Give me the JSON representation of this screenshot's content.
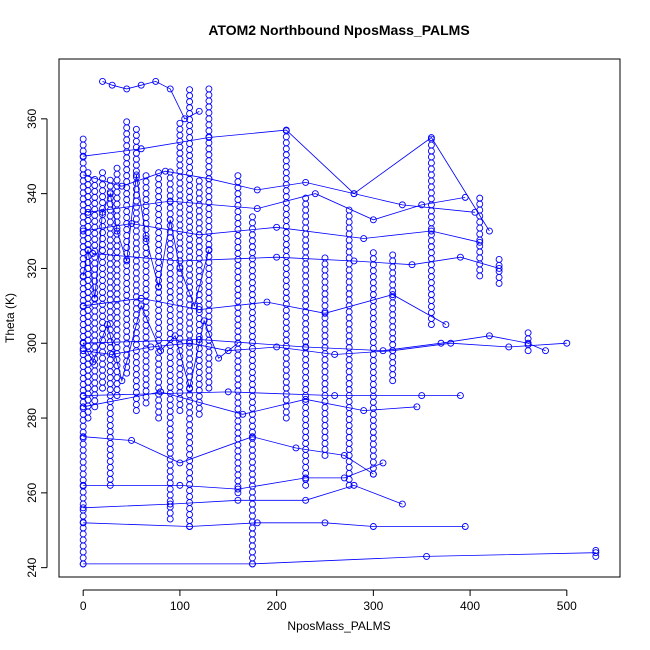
{
  "chart_data": {
    "type": "scatter",
    "title": "ATOM2 Northbound NposMass_PALMS",
    "xlabel": "NposMass_PALMS",
    "ylabel": "Theta (K)",
    "xlim": [
      -25,
      555
    ],
    "ylim": [
      237.5,
      376
    ],
    "x_ticks": [
      0,
      100,
      200,
      300,
      400,
      500
    ],
    "y_ticks": [
      240,
      260,
      280,
      300,
      320,
      340,
      360
    ],
    "grid": false,
    "legend": "none",
    "colors": {
      "points": "#0000ff",
      "lines": "#0000ff",
      "axes": "#000000"
    },
    "connected": true,
    "description_series": [
      {
        "x": [
          0,
          5,
          12,
          20,
          28,
          35,
          45,
          55,
          65,
          78,
          90,
          100,
          115,
          130
        ],
        "y": [
          318,
          325,
          312,
          335,
          340,
          330,
          322,
          345,
          328,
          315,
          333,
          320,
          310,
          325
        ]
      },
      {
        "x": [
          0,
          10,
          25,
          40,
          60,
          80,
          95,
          110,
          125,
          140,
          160
        ],
        "y": [
          300,
          295,
          305,
          290,
          310,
          298,
          302,
          288,
          306,
          296,
          300
        ]
      },
      {
        "x": [
          20,
          30,
          45,
          60,
          75,
          90,
          105,
          120
        ],
        "y": [
          370,
          369,
          368,
          369,
          370,
          368,
          360,
          362
        ]
      },
      {
        "x": [
          0,
          60,
          130,
          210,
          280,
          360,
          420
        ],
        "y": [
          350,
          352,
          355,
          357,
          340,
          355,
          330
        ]
      },
      {
        "x": [
          0,
          80,
          165,
          230,
          290,
          345
        ],
        "y": [
          283,
          287,
          281,
          285,
          282,
          283
        ]
      },
      {
        "x": [
          5,
          90,
          180,
          240,
          300,
          350,
          395
        ],
        "y": [
          335,
          338,
          336,
          340,
          333,
          337,
          339
        ]
      },
      {
        "x": [
          10,
          100,
          200,
          280,
          340,
          390,
          430
        ],
        "y": [
          324,
          322,
          323,
          322,
          321,
          323,
          320
        ]
      },
      {
        "x": [
          0,
          120,
          230,
          310,
          370,
          420,
          460,
          478
        ],
        "y": [
          300,
          301,
          299,
          298,
          300,
          302,
          300,
          298
        ]
      },
      {
        "x": [
          0,
          150,
          260,
          350,
          390
        ],
        "y": [
          286,
          287,
          286,
          286,
          286
        ]
      },
      {
        "x": [
          0,
          100,
          160,
          230,
          270,
          310
        ],
        "y": [
          262,
          262,
          261,
          264,
          264,
          268
        ]
      },
      {
        "x": [
          0,
          90,
          160,
          230,
          280,
          330
        ],
        "y": [
          256,
          257,
          258,
          258,
          262,
          257
        ]
      },
      {
        "x": [
          0,
          110,
          180,
          250,
          300,
          395
        ],
        "y": [
          252,
          251,
          252,
          252,
          251,
          251
        ]
      },
      {
        "x": [
          0,
          175,
          355,
          530
        ],
        "y": [
          241,
          241,
          243,
          244
        ]
      },
      {
        "x": [
          0,
          50,
          100,
          175,
          220,
          270,
          300
        ],
        "y": [
          275,
          274,
          268,
          275,
          272,
          270,
          265
        ]
      },
      {
        "x": [
          0,
          40,
          85,
          130,
          180,
          230,
          280,
          330,
          405
        ],
        "y": [
          345,
          342,
          346,
          344,
          341,
          343,
          340,
          337,
          335
        ]
      },
      {
        "x": [
          0,
          30,
          70,
          110,
          150,
          200,
          260,
          320,
          380,
          440,
          500
        ],
        "y": [
          298,
          297,
          299,
          300,
          298,
          299,
          297,
          298,
          300,
          299,
          300
        ]
      },
      {
        "x": [
          0,
          60,
          120,
          190,
          250,
          320,
          375
        ],
        "y": [
          310,
          312,
          309,
          311,
          308,
          313,
          305
        ]
      },
      {
        "x": [
          0,
          50,
          120,
          200,
          290,
          360,
          410
        ],
        "y": [
          330,
          332,
          329,
          331,
          328,
          330,
          327
        ]
      }
    ],
    "vertical_stacks": [
      {
        "x": 0,
        "y_min": 241,
        "y_max": 355
      },
      {
        "x": 5,
        "y_min": 280,
        "y_max": 347
      },
      {
        "x": 12,
        "y_min": 283,
        "y_max": 345
      },
      {
        "x": 20,
        "y_min": 288,
        "y_max": 346
      },
      {
        "x": 28,
        "y_min": 262,
        "y_max": 344
      },
      {
        "x": 35,
        "y_min": 286,
        "y_max": 347
      },
      {
        "x": 45,
        "y_min": 292,
        "y_max": 360
      },
      {
        "x": 55,
        "y_min": 282,
        "y_max": 358
      },
      {
        "x": 65,
        "y_min": 284,
        "y_max": 345
      },
      {
        "x": 78,
        "y_min": 280,
        "y_max": 347
      },
      {
        "x": 90,
        "y_min": 253,
        "y_max": 346
      },
      {
        "x": 100,
        "y_min": 282,
        "y_max": 360
      },
      {
        "x": 110,
        "y_min": 251,
        "y_max": 368
      },
      {
        "x": 120,
        "y_min": 281,
        "y_max": 345
      },
      {
        "x": 130,
        "y_min": 288,
        "y_max": 369
      },
      {
        "x": 160,
        "y_min": 260,
        "y_max": 345
      },
      {
        "x": 175,
        "y_min": 241,
        "y_max": 335
      },
      {
        "x": 210,
        "y_min": 280,
        "y_max": 357
      },
      {
        "x": 230,
        "y_min": 262,
        "y_max": 340
      },
      {
        "x": 250,
        "y_min": 270,
        "y_max": 324
      },
      {
        "x": 275,
        "y_min": 262,
        "y_max": 336
      },
      {
        "x": 300,
        "y_min": 265,
        "y_max": 325
      },
      {
        "x": 320,
        "y_min": 290,
        "y_max": 324
      },
      {
        "x": 360,
        "y_min": 305,
        "y_max": 355
      },
      {
        "x": 410,
        "y_min": 318,
        "y_max": 339
      },
      {
        "x": 430,
        "y_min": 316,
        "y_max": 323
      },
      {
        "x": 460,
        "y_min": 298,
        "y_max": 303
      },
      {
        "x": 530,
        "y_min": 243,
        "y_max": 245
      }
    ]
  }
}
